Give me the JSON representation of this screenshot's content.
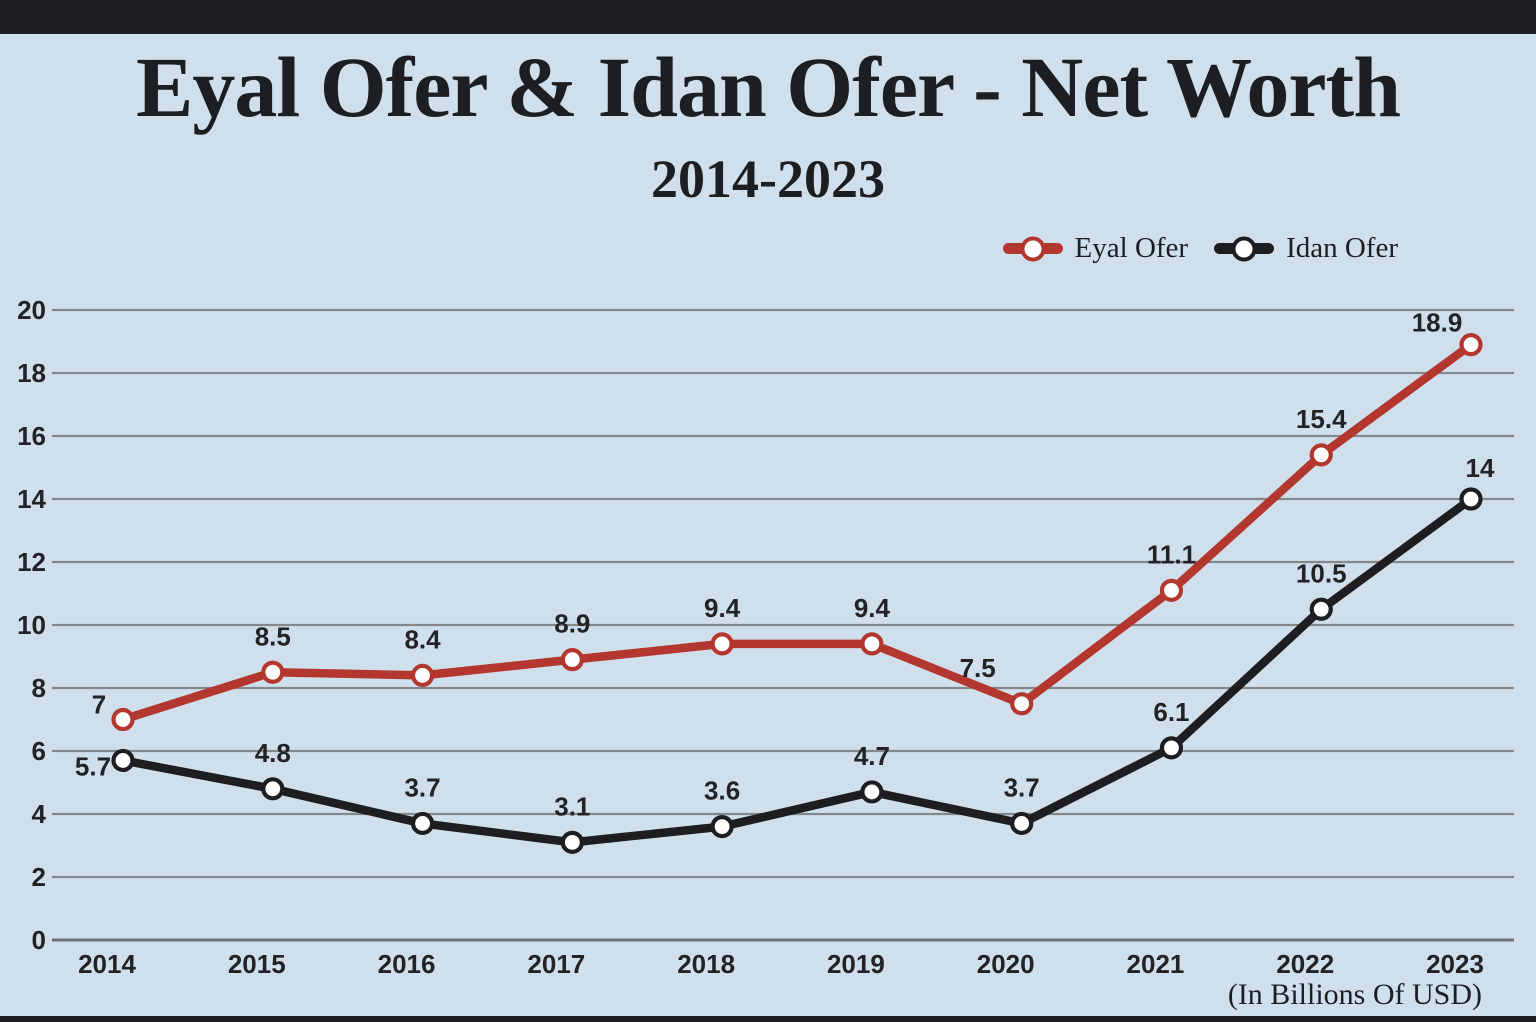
{
  "title": "Eyal Ofer & Idan Ofer - Net Worth",
  "subtitle": "2014-2023",
  "footnote": "(In Billions Of USD)",
  "colors": {
    "background": "#cfe0ec",
    "frame_bar": "#202024",
    "eyal_red": "#b3372e",
    "idan_black": "#1e1e20",
    "gridline": "#84888b",
    "axis_line": "#6e7275",
    "label_text": "#232327",
    "marker_fill": "#ffffff"
  },
  "legend": {
    "items": [
      {
        "label": "Eyal Ofer",
        "color": "#b3372e"
      },
      {
        "label": "Idan Ofer",
        "color": "#1e1e20"
      }
    ]
  },
  "chart_data": {
    "type": "line",
    "categories": [
      "2014",
      "2015",
      "2016",
      "2017",
      "2018",
      "2019",
      "2020",
      "2021",
      "2022",
      "2023"
    ],
    "series": [
      {
        "name": "Eyal Ofer",
        "color": "#b3372e",
        "values": [
          7,
          8.5,
          8.4,
          8.9,
          9.4,
          9.4,
          7.5,
          11.1,
          15.4,
          18.9
        ]
      },
      {
        "name": "Idan Ofer",
        "color": "#1e1e20",
        "values": [
          5.7,
          4.8,
          3.7,
          3.1,
          3.6,
          4.7,
          3.7,
          6.1,
          10.5,
          14
        ]
      }
    ],
    "title": "Eyal Ofer & Idan Ofer - Net Worth",
    "subtitle": "2014-2023",
    "xlabel": "",
    "ylabel": "",
    "units": "In Billions Of USD",
    "ylim": [
      0,
      20
    ],
    "yticks": [
      0,
      2,
      4,
      6,
      8,
      10,
      12,
      14,
      16,
      18,
      20
    ],
    "grid": true,
    "legend_position": "top-right",
    "marker": "circle-white-fill",
    "data_labels": true
  }
}
